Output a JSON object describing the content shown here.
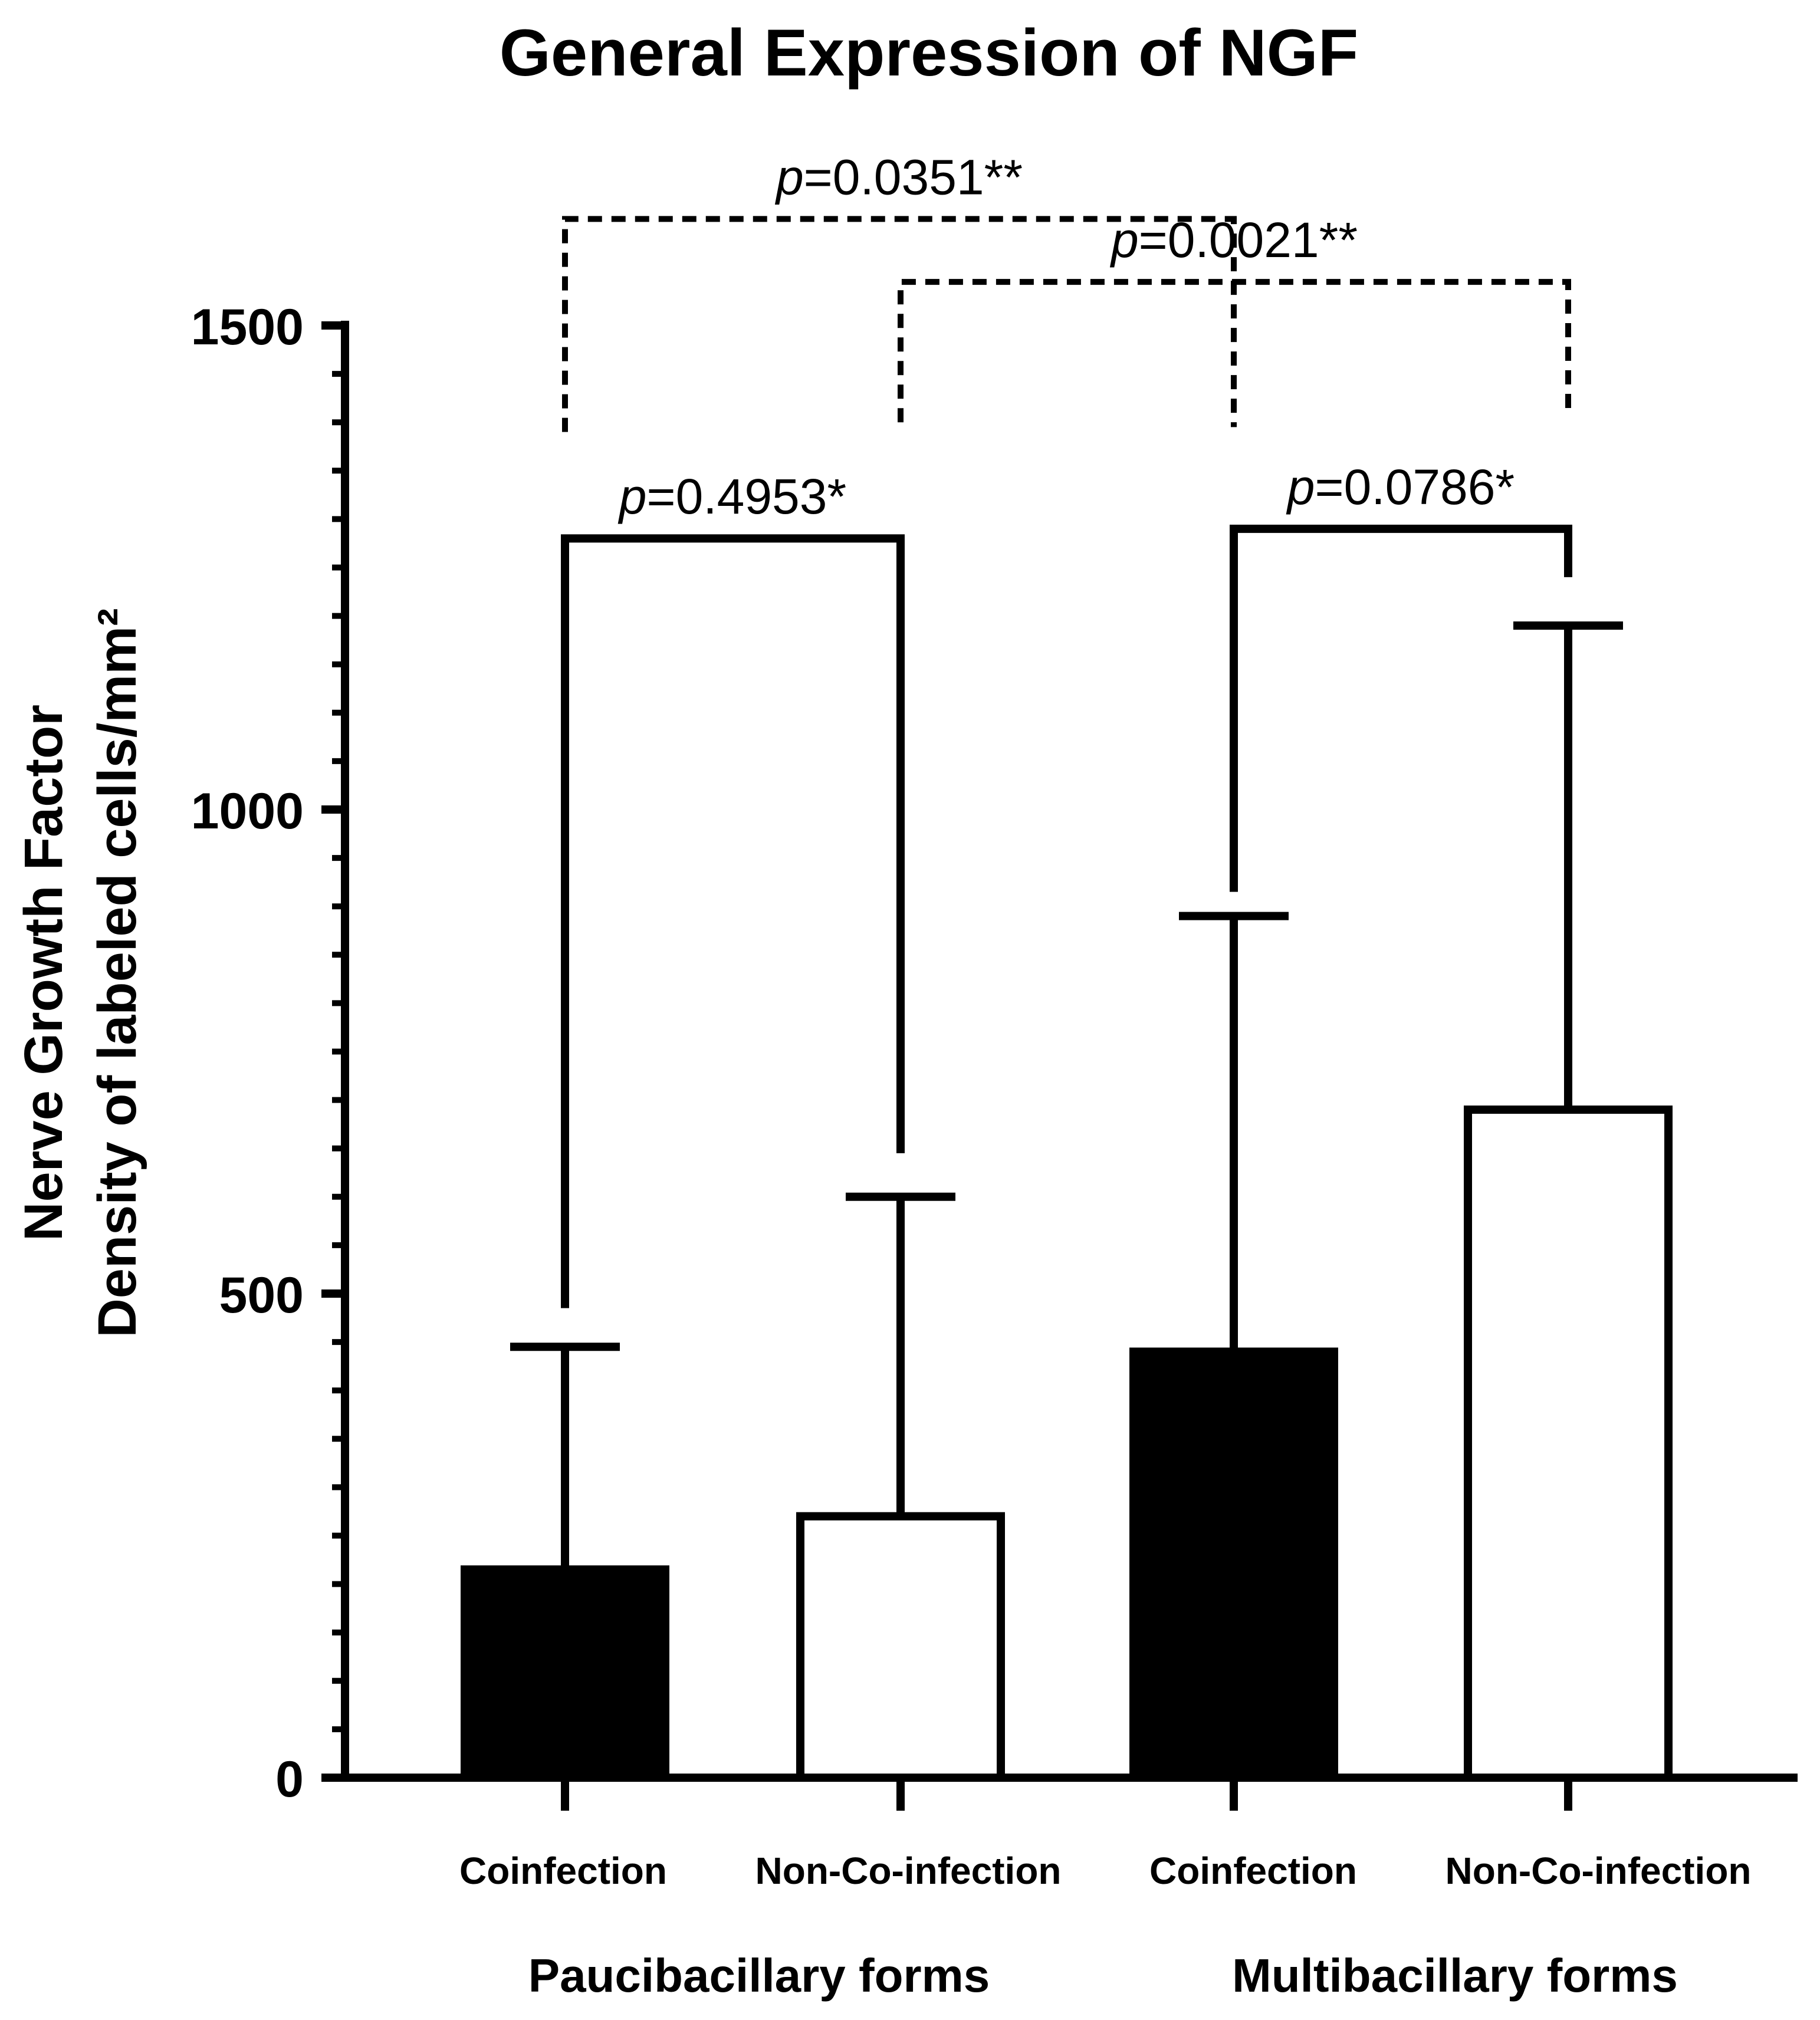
{
  "chart_data": {
    "type": "bar",
    "title": "General Expression of NGF",
    "ylabel_lines": [
      "Nerve Growth Factor",
      "Density of labeled cells/mm²"
    ],
    "xlabel": "",
    "ylim": [
      0,
      1500
    ],
    "yticks": [
      0,
      500,
      1000,
      1500
    ],
    "y_minor_tick_step": 50,
    "grid": false,
    "legend": "none",
    "categories": [
      "Coinfection",
      "Non-Co-infection",
      "Coinfection",
      "Non-Co-infection"
    ],
    "groups": [
      {
        "label": "Paucibacillary forms",
        "categories": [
          0,
          1
        ]
      },
      {
        "label": "Multibacillary forms",
        "categories": [
          2,
          3
        ]
      }
    ],
    "values": [
      215,
      270,
      440,
      690
    ],
    "error_upper": [
      445,
      600,
      890,
      1190
    ],
    "bar_fill": [
      "#000000",
      "#ffffff",
      "#000000",
      "#ffffff"
    ],
    "comparisons": [
      {
        "from": 0,
        "to": 1,
        "label_italic": "p",
        "label_rest": "=0.4953*",
        "style": "solid",
        "bracket_y": 1280,
        "left_leg_to": 485,
        "right_leg_to": 645
      },
      {
        "from": 2,
        "to": 3,
        "label_italic": "p",
        "label_rest": "=0.0786*",
        "style": "solid",
        "bracket_y": 1290,
        "left_leg_to": 915,
        "right_leg_to": 1240
      },
      {
        "from": 0,
        "to": 2,
        "label_italic": "p",
        "label_rest": "=0.0351**",
        "style": "dashed",
        "bracket_y": 1610,
        "left_leg_to": 1390,
        "right_leg_to": 1395
      },
      {
        "from": 1,
        "to": 3,
        "label_italic": "p",
        "label_rest": "=0.0021**",
        "style": "dashed",
        "bracket_y": 1545,
        "left_leg_to": 1400,
        "right_leg_to": 1410
      }
    ]
  }
}
